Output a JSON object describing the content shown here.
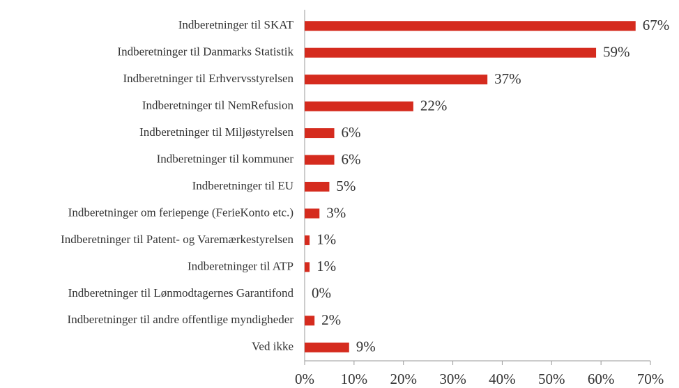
{
  "chart_data": {
    "type": "bar",
    "orientation": "horizontal",
    "categories": [
      "Indberetninger til SKAT",
      "Indberetninger til Danmarks Statistik",
      "Indberetninger til Erhvervsstyrelsen",
      "Indberetninger til NemRefusion",
      "Indberetninger til Miljøstyrelsen",
      "Indberetninger til kommuner",
      "Indberetninger til EU",
      "Indberetninger om feriepenge (FerieKonto etc.)",
      "Indberetninger til Patent- og Varemærkestyrelsen",
      "Indberetninger til ATP",
      "Indberetninger til Lønmodtagernes Garantifond",
      "Indberetninger til andre offentlige myndigheder",
      "Ved ikke"
    ],
    "values": [
      67,
      59,
      37,
      22,
      6,
      6,
      5,
      3,
      1,
      1,
      0,
      2,
      9
    ],
    "value_labels": [
      "67%",
      "59%",
      "37%",
      "22%",
      "6%",
      "6%",
      "5%",
      "3%",
      "1%",
      "1%",
      "0%",
      "2%",
      "9%"
    ],
    "color": "#d52b1e",
    "xlim": [
      0,
      70
    ],
    "xticks": [
      {
        "value": 0,
        "label": "0%"
      },
      {
        "value": 10,
        "label": "10%"
      },
      {
        "value": 20,
        "label": "20%"
      },
      {
        "value": 30,
        "label": "30%"
      },
      {
        "value": 40,
        "label": "40%"
      },
      {
        "value": 50,
        "label": "50%"
      },
      {
        "value": 60,
        "label": "60%"
      },
      {
        "value": 70,
        "label": "70%"
      }
    ],
    "grid": false
  }
}
